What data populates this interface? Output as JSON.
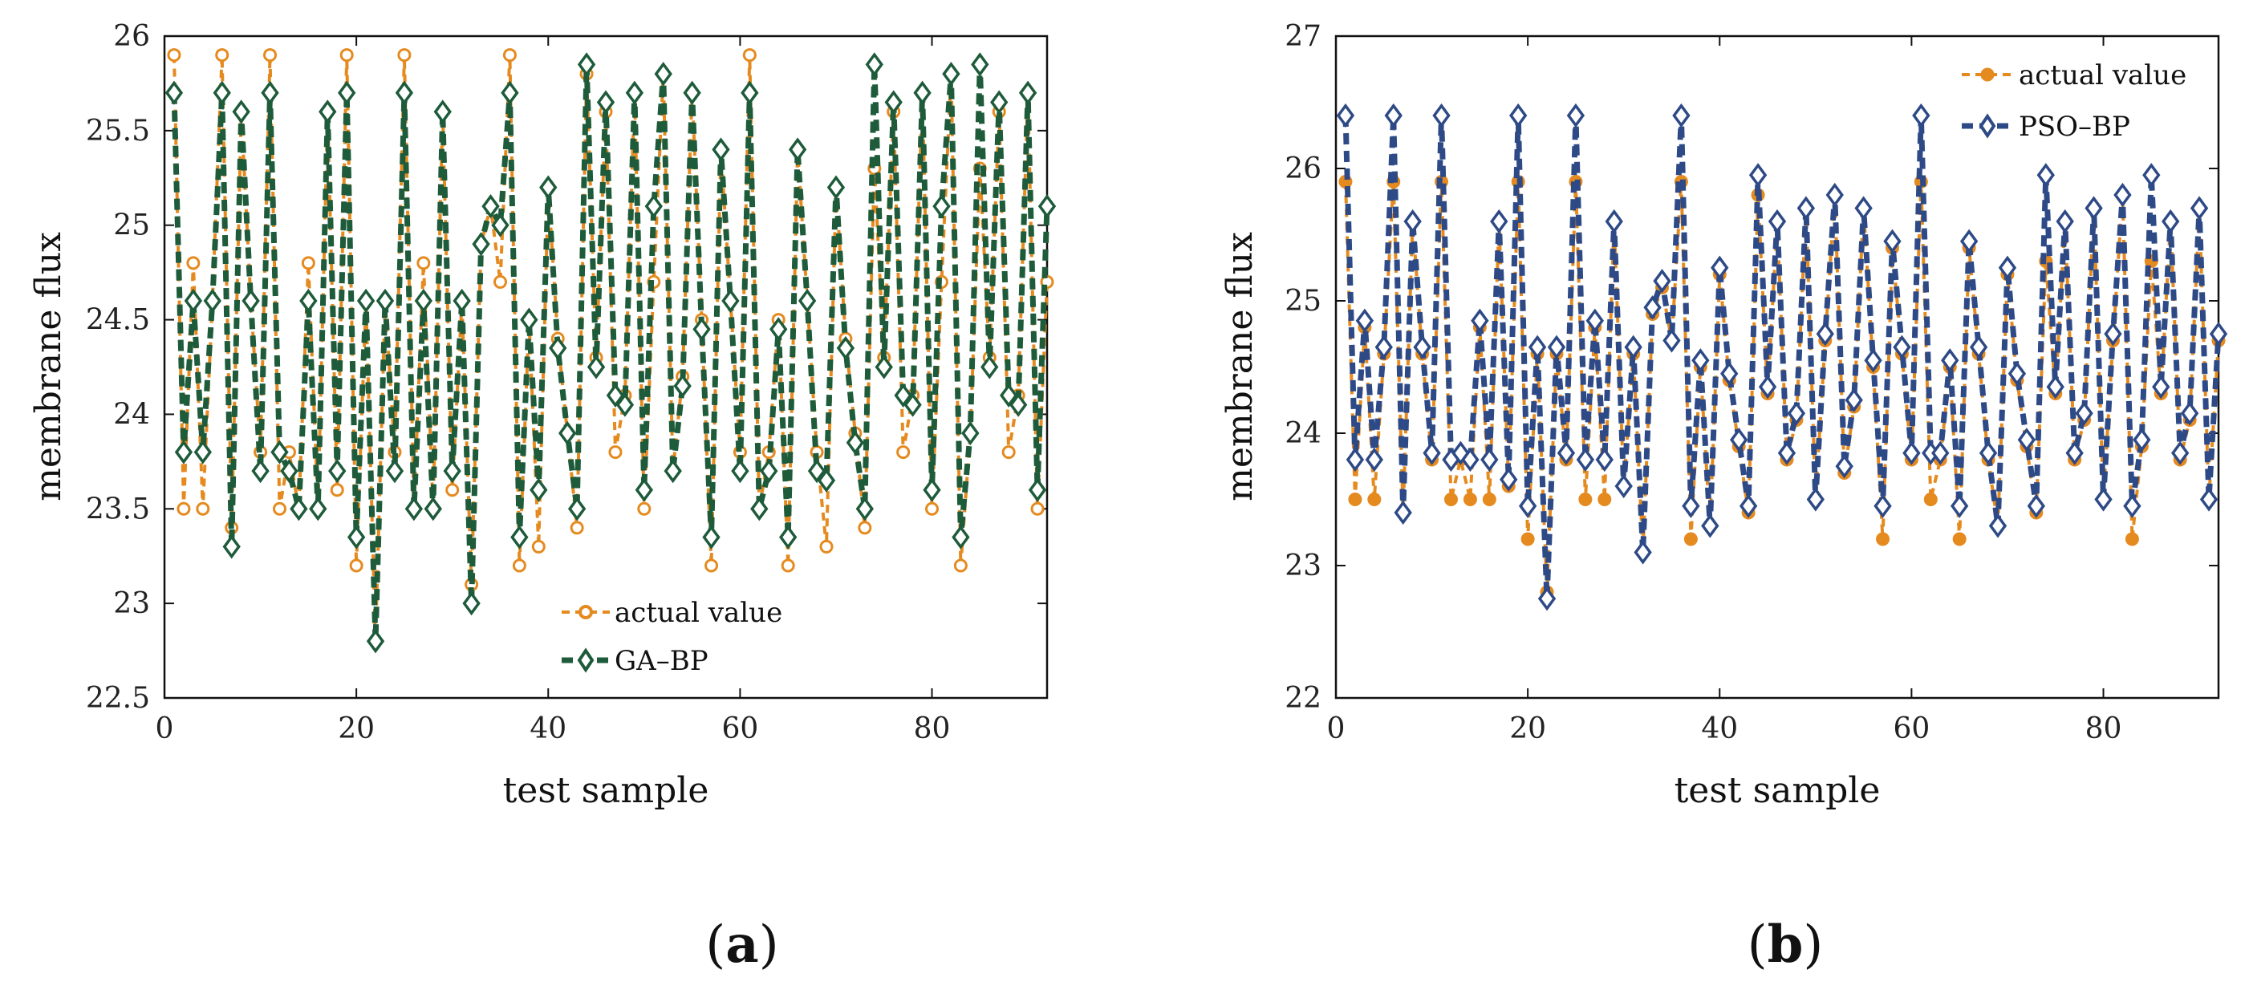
{
  "chart_data": [
    {
      "type": "line",
      "panel_label": "a",
      "xlabel": "test sample",
      "ylabel": "membrane flux",
      "xlim": [
        0,
        92
      ],
      "ylim": [
        22.5,
        26
      ],
      "xticks": [
        0,
        20,
        40,
        60,
        80
      ],
      "yticks": [
        22.5,
        23,
        23.5,
        24,
        24.5,
        25,
        25.5,
        26
      ],
      "ytick_labels": [
        "22.5",
        "23",
        "23.5",
        "24",
        "24.5",
        "25",
        "25.5",
        "26"
      ],
      "legend_position": "bottom-center",
      "series": [
        {
          "name": "actual value",
          "color": "#E58A1F",
          "marker": "circle",
          "x": [
            1,
            2,
            3,
            4,
            5,
            6,
            7,
            8,
            9,
            10,
            11,
            12,
            13,
            14,
            15,
            16,
            17,
            18,
            19,
            20,
            21,
            22,
            23,
            24,
            25,
            26,
            27,
            28,
            29,
            30,
            31,
            32,
            33,
            34,
            35,
            36,
            37,
            38,
            39,
            40,
            41,
            42,
            43,
            44,
            45,
            46,
            47,
            48,
            49,
            50,
            51,
            52,
            53,
            54,
            55,
            56,
            57,
            58,
            59,
            60,
            61,
            62,
            63,
            64,
            65,
            66,
            67,
            68,
            69,
            70,
            71,
            72,
            73,
            74,
            75,
            76,
            77,
            78,
            79,
            80,
            81,
            82,
            83,
            84,
            85,
            86,
            87,
            88,
            89,
            90,
            91,
            92
          ],
          "values": [
            25.9,
            23.5,
            24.8,
            23.5,
            24.6,
            25.9,
            23.4,
            25.6,
            24.6,
            23.8,
            25.9,
            23.5,
            23.8,
            23.5,
            24.8,
            23.5,
            25.6,
            23.6,
            25.9,
            23.2,
            24.6,
            22.8,
            24.6,
            23.8,
            25.9,
            23.5,
            24.8,
            23.5,
            25.6,
            23.6,
            24.6,
            23.1,
            24.9,
            25.1,
            24.7,
            25.9,
            23.2,
            24.5,
            23.3,
            25.2,
            24.4,
            23.9,
            23.4,
            25.8,
            24.3,
            25.6,
            23.8,
            24.1,
            25.7,
            23.5,
            24.7,
            25.8,
            23.7,
            24.2,
            25.7,
            24.5,
            23.2,
            25.4,
            24.6,
            23.8,
            25.9,
            23.5,
            23.8,
            24.5,
            23.2,
            25.4,
            24.6,
            23.8,
            23.3,
            25.2,
            24.4,
            23.9,
            23.4,
            25.3,
            24.3,
            25.6,
            23.8,
            24.1,
            25.7,
            23.5,
            24.7,
            25.8,
            23.2,
            23.9,
            25.3,
            24.3,
            25.6,
            23.8,
            24.1,
            25.7,
            23.5,
            24.7
          ]
        },
        {
          "name": "GA–BP",
          "color": "#1E5B3A",
          "marker": "diamond",
          "x": [
            1,
            2,
            3,
            4,
            5,
            6,
            7,
            8,
            9,
            10,
            11,
            12,
            13,
            14,
            15,
            16,
            17,
            18,
            19,
            20,
            21,
            22,
            23,
            24,
            25,
            26,
            27,
            28,
            29,
            30,
            31,
            32,
            33,
            34,
            35,
            36,
            37,
            38,
            39,
            40,
            41,
            42,
            43,
            44,
            45,
            46,
            47,
            48,
            49,
            50,
            51,
            52,
            53,
            54,
            55,
            56,
            57,
            58,
            59,
            60,
            61,
            62,
            63,
            64,
            65,
            66,
            67,
            68,
            69,
            70,
            71,
            72,
            73,
            74,
            75,
            76,
            77,
            78,
            79,
            80,
            81,
            82,
            83,
            84,
            85,
            86,
            87,
            88,
            89,
            90,
            91,
            92
          ],
          "values": [
            25.7,
            23.8,
            24.6,
            23.8,
            24.6,
            25.7,
            23.3,
            25.6,
            24.6,
            23.7,
            25.7,
            23.8,
            23.7,
            23.5,
            24.6,
            23.5,
            25.6,
            23.7,
            25.7,
            23.35,
            24.6,
            22.8,
            24.6,
            23.7,
            25.7,
            23.5,
            24.6,
            23.5,
            25.6,
            23.7,
            24.6,
            23.0,
            24.9,
            25.1,
            25.0,
            25.7,
            23.35,
            24.5,
            23.6,
            25.2,
            24.35,
            23.9,
            23.5,
            25.85,
            24.25,
            25.65,
            24.1,
            24.05,
            25.7,
            23.6,
            25.1,
            25.8,
            23.7,
            24.15,
            25.7,
            24.45,
            23.35,
            25.4,
            24.6,
            23.7,
            25.7,
            23.5,
            23.7,
            24.45,
            23.35,
            25.4,
            24.6,
            23.7,
            23.65,
            25.2,
            24.35,
            23.85,
            23.5,
            25.85,
            24.25,
            25.65,
            24.1,
            24.05,
            25.7,
            23.6,
            25.1,
            25.8,
            23.35,
            23.9,
            25.85,
            24.25,
            25.65,
            24.1,
            24.05,
            25.7,
            23.6,
            25.1
          ]
        }
      ]
    },
    {
      "type": "line",
      "panel_label": "b",
      "xlabel": "test sample",
      "ylabel": "membrane flux",
      "xlim": [
        0,
        92
      ],
      "ylim": [
        22,
        27
      ],
      "xticks": [
        0,
        20,
        40,
        60,
        80
      ],
      "yticks": [
        22,
        23,
        24,
        25,
        26,
        27
      ],
      "ytick_labels": [
        "22",
        "23",
        "24",
        "25",
        "26",
        "27"
      ],
      "legend_position": "top-right",
      "series": [
        {
          "name": "actual value",
          "color": "#E58A1F",
          "marker": "circle",
          "x": [
            1,
            2,
            3,
            4,
            5,
            6,
            7,
            8,
            9,
            10,
            11,
            12,
            13,
            14,
            15,
            16,
            17,
            18,
            19,
            20,
            21,
            22,
            23,
            24,
            25,
            26,
            27,
            28,
            29,
            30,
            31,
            32,
            33,
            34,
            35,
            36,
            37,
            38,
            39,
            40,
            41,
            42,
            43,
            44,
            45,
            46,
            47,
            48,
            49,
            50,
            51,
            52,
            53,
            54,
            55,
            56,
            57,
            58,
            59,
            60,
            61,
            62,
            63,
            64,
            65,
            66,
            67,
            68,
            69,
            70,
            71,
            72,
            73,
            74,
            75,
            76,
            77,
            78,
            79,
            80,
            81,
            82,
            83,
            84,
            85,
            86,
            87,
            88,
            89,
            90,
            91,
            92
          ],
          "values": [
            25.9,
            23.5,
            24.8,
            23.5,
            24.6,
            25.9,
            23.4,
            25.6,
            24.6,
            23.8,
            25.9,
            23.5,
            23.8,
            23.5,
            24.8,
            23.5,
            25.6,
            23.6,
            25.9,
            23.2,
            24.6,
            22.8,
            24.6,
            23.8,
            25.9,
            23.5,
            24.8,
            23.5,
            25.6,
            23.6,
            24.6,
            23.1,
            24.9,
            25.1,
            24.7,
            25.9,
            23.2,
            24.5,
            23.3,
            25.2,
            24.4,
            23.9,
            23.4,
            25.8,
            24.3,
            25.6,
            23.8,
            24.1,
            25.7,
            23.5,
            24.7,
            25.8,
            23.7,
            24.2,
            25.7,
            24.5,
            23.2,
            25.4,
            24.6,
            23.8,
            25.9,
            23.5,
            23.8,
            24.5,
            23.2,
            25.4,
            24.6,
            23.8,
            23.3,
            25.2,
            24.4,
            23.9,
            23.4,
            25.3,
            24.3,
            25.6,
            23.8,
            24.1,
            25.7,
            23.5,
            24.7,
            25.8,
            23.2,
            23.9,
            25.3,
            24.3,
            25.6,
            23.8,
            24.1,
            25.7,
            23.5,
            24.7
          ]
        },
        {
          "name": "PSO–BP",
          "color": "#2E4A86",
          "marker": "diamond",
          "x": [
            1,
            2,
            3,
            4,
            5,
            6,
            7,
            8,
            9,
            10,
            11,
            12,
            13,
            14,
            15,
            16,
            17,
            18,
            19,
            20,
            21,
            22,
            23,
            24,
            25,
            26,
            27,
            28,
            29,
            30,
            31,
            32,
            33,
            34,
            35,
            36,
            37,
            38,
            39,
            40,
            41,
            42,
            43,
            44,
            45,
            46,
            47,
            48,
            49,
            50,
            51,
            52,
            53,
            54,
            55,
            56,
            57,
            58,
            59,
            60,
            61,
            62,
            63,
            64,
            65,
            66,
            67,
            68,
            69,
            70,
            71,
            72,
            73,
            74,
            75,
            76,
            77,
            78,
            79,
            80,
            81,
            82,
            83,
            84,
            85,
            86,
            87,
            88,
            89,
            90,
            91,
            92
          ],
          "values": [
            26.4,
            23.8,
            24.85,
            23.8,
            24.65,
            26.4,
            23.4,
            25.6,
            24.65,
            23.85,
            26.4,
            23.8,
            23.85,
            23.8,
            24.85,
            23.8,
            25.6,
            23.65,
            26.4,
            23.45,
            24.65,
            22.75,
            24.65,
            23.85,
            26.4,
            23.8,
            24.85,
            23.8,
            25.6,
            23.6,
            24.65,
            23.1,
            24.95,
            25.15,
            24.7,
            26.4,
            23.45,
            24.55,
            23.3,
            25.25,
            24.45,
            23.95,
            23.45,
            25.95,
            24.35,
            25.6,
            23.85,
            24.15,
            25.7,
            23.5,
            24.75,
            25.8,
            23.75,
            24.25,
            25.7,
            24.55,
            23.45,
            25.45,
            24.65,
            23.85,
            26.4,
            23.85,
            23.85,
            24.55,
            23.45,
            25.45,
            24.65,
            23.85,
            23.3,
            25.25,
            24.45,
            23.95,
            23.45,
            25.95,
            24.35,
            25.6,
            23.85,
            24.15,
            25.7,
            23.5,
            24.75,
            25.8,
            23.45,
            23.95,
            25.95,
            24.35,
            25.6,
            23.85,
            24.15,
            25.7,
            23.5,
            24.75
          ]
        }
      ]
    }
  ]
}
